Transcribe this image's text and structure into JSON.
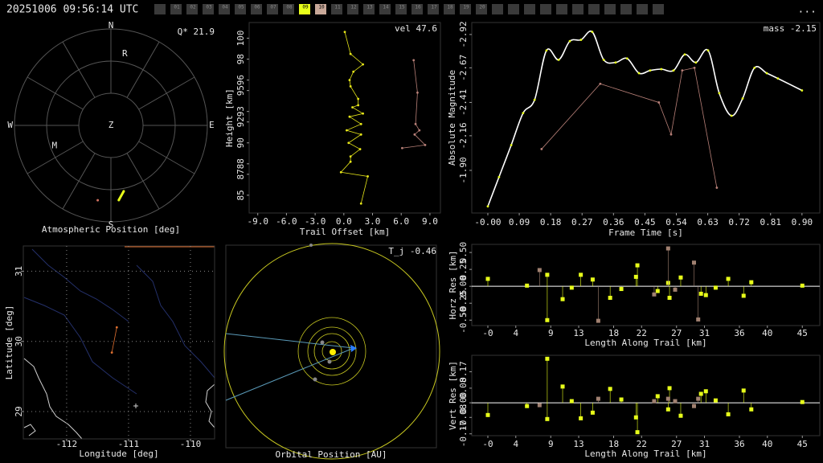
{
  "header": {
    "timestamp": "20251006 09:56:14 UTC",
    "menu": "...",
    "tab_color": "#3a3a3a",
    "tabs": [
      {
        "label": "01"
      },
      {
        "label": "02"
      },
      {
        "label": "03"
      },
      {
        "label": "04"
      },
      {
        "label": "05"
      },
      {
        "label": "06"
      },
      {
        "label": "07"
      },
      {
        "label": "08"
      },
      {
        "label": "09",
        "color": "#e8ff1a"
      },
      {
        "label": "10",
        "color": "#c8a898"
      },
      {
        "label": "11"
      },
      {
        "label": "12"
      },
      {
        "label": "13"
      },
      {
        "label": "14"
      },
      {
        "label": "15"
      },
      {
        "label": "16"
      },
      {
        "label": "17"
      },
      {
        "label": "18"
      },
      {
        "label": "19"
      },
      {
        "label": "20"
      }
    ]
  },
  "chart_data": [
    {
      "type": "polar",
      "title": "Atmospheric Position [deg]",
      "annotation": "Q* 21.9",
      "directions": {
        "north": "N",
        "east": "E",
        "south": "S",
        "west": "W",
        "zenith": "Z"
      },
      "rlim": [
        0,
        90
      ],
      "stations": [
        {
          "label": "R",
          "azimuth": 11,
          "zenith": 68
        },
        {
          "label": "M",
          "azimuth": 250,
          "zenith": 56
        }
      ],
      "series": [
        {
          "color": "#e8ff1a",
          "azimuth": [
            174,
            169
          ],
          "values": [
            70.1,
            62.6
          ]
        },
        {
          "color": "#d07060",
          "azimuth": [
            190
          ],
          "values": [
            70.9
          ]
        }
      ]
    },
    {
      "type": "line",
      "xlabel": "Trail Offset [km]",
      "ylabel": "Height [km]",
      "annotation": "vel 47.6",
      "xlim": [
        -9.9,
        10.1
      ],
      "ylim": [
        83.3,
        101.5
      ],
      "xticks": [
        {
          "value": -9,
          "label": "-9.0"
        },
        {
          "value": -6,
          "label": "-6.0"
        },
        {
          "value": -3,
          "label": "-3.0"
        },
        {
          "value": 0,
          "label": "0.0"
        },
        {
          "value": 3,
          "label": "3.0"
        },
        {
          "value": 6,
          "label": "6.0"
        },
        {
          "value": 9,
          "label": "9.0"
        }
      ],
      "yticks": [
        85,
        87,
        88,
        90,
        92,
        93,
        95,
        96,
        98,
        100
      ],
      "series": [
        {
          "color": "#e6e619",
          "x": [
            0.1,
            0.7,
            2.0,
            1.0,
            0.6,
            0.7,
            1.5,
            1.5,
            0.9,
            2.0,
            0.6,
            1.8,
            0.3,
            1.8,
            0.5,
            1.7,
            0.7,
            0.7,
            -0.3,
            2.5,
            1.8
          ],
          "values": [
            100.6,
            98.5,
            97.5,
            96.8,
            96.0,
            95.4,
            94.2,
            93.6,
            93.4,
            92.8,
            92.5,
            91.8,
            91.2,
            90.8,
            90.0,
            89.4,
            88.7,
            88.2,
            87.2,
            86.8,
            84.2
          ]
        },
        {
          "color": "#b88078",
          "x": [
            7.3,
            7.7,
            7.5,
            7.9,
            7.4,
            8.5,
            6.1
          ],
          "values": [
            97.9,
            94.8,
            91.8,
            91.2,
            90.8,
            89.8,
            89.5
          ]
        }
      ]
    },
    {
      "type": "line",
      "xlabel": "Frame Time [s]",
      "ylabel": "Absolute Magnitude",
      "annotation": "mass -2.15",
      "xlim": [
        -0.046,
        0.951
      ],
      "ylim": [
        -1.58,
        -3.01
      ],
      "xticks": [
        {
          "value": 0,
          "label": "-0.00"
        },
        0.09,
        0.18,
        0.27,
        0.36,
        0.45,
        0.54,
        0.63,
        0.72,
        0.81,
        {
          "value": 0.9,
          "label": "0.90"
        }
      ],
      "yticks": [
        -2.92,
        -2.67,
        -2.41,
        -2.16,
        {
          "value": -1.9,
          "label": "-1.90"
        }
      ],
      "series": [
        {
          "color": "#e8ff1a",
          "line_color": "#ffffff",
          "smooth": true,
          "x": [
            0,
            0.032,
            0.067,
            0.101,
            0.134,
            0.168,
            0.203,
            0.235,
            0.267,
            0.299,
            0.332,
            0.366,
            0.399,
            0.433,
            0.465,
            0.497,
            0.532,
            0.564,
            0.596,
            0.631,
            0.663,
            0.698,
            0.73,
            0.764,
            0.799,
            0.831,
            0.9
          ],
          "values": [
            -1.63,
            -1.85,
            -2.09,
            -2.33,
            -2.43,
            -2.8,
            -2.73,
            -2.87,
            -2.88,
            -2.94,
            -2.73,
            -2.71,
            -2.74,
            -2.63,
            -2.65,
            -2.66,
            -2.65,
            -2.77,
            -2.71,
            -2.8,
            -2.48,
            -2.31,
            -2.44,
            -2.67,
            -2.63,
            -2.59,
            -2.5
          ]
        },
        {
          "color": "#b88078",
          "x": [
            0.154,
            0.322,
            0.49,
            0.525,
            0.557,
            0.592,
            0.656
          ],
          "values": [
            -2.06,
            -2.55,
            -2.41,
            -2.17,
            -2.65,
            -2.67,
            -1.77
          ]
        }
      ]
    },
    {
      "type": "line",
      "xlabel": "Longitude [deg]",
      "ylabel": "Latitude [deg]",
      "grid": true,
      "xlim": [
        -112.7,
        -109.61
      ],
      "ylim": [
        28.61,
        31.36
      ],
      "xticks": [
        -112,
        -111,
        -110
      ],
      "yticks": [
        29,
        30,
        31
      ],
      "series": [
        {
          "color": "#e07030",
          "x": [
            -111.19,
            -111.27
          ],
          "values": [
            30.2,
            29.84
          ]
        }
      ]
    },
    {
      "type": "orbit",
      "title": "Orbital Position [AU]",
      "annotation": "T_j -0.46"
    },
    {
      "type": "stem",
      "xlabel": "Length Along Trail [km]",
      "ylabel": "Horz Res [km]",
      "xlim": [
        -2.3,
        47.5
      ],
      "ylim": [
        -0.58,
        0.62
      ],
      "xticks": [
        {
          "value": 0,
          "label": "-0"
        },
        4,
        9,
        13,
        18,
        22,
        27,
        31,
        36,
        40,
        45
      ],
      "yticks": [
        {
          "value": -0.5,
          "label": "-0.50"
        },
        -0.25,
        {
          "value": 0,
          "label": "0.00"
        },
        0.25,
        {
          "value": 0.5,
          "label": "0.50"
        }
      ],
      "series": [
        {
          "color": "#e8ff1a",
          "x": [
            0,
            5.6,
            8.5,
            8.5,
            10.7,
            12,
            13.3,
            15,
            17.5,
            19.1,
            21.2,
            21.4,
            24.3,
            25.8,
            26,
            27.6,
            30.5,
            31.2,
            32.6,
            34.4,
            36.6,
            37.7,
            45
          ],
          "values": [
            0.11,
            0.01,
            0.17,
            -0.5,
            -0.19,
            -0.02,
            0.17,
            0.1,
            -0.17,
            -0.04,
            0.14,
            0.31,
            -0.07,
            0.05,
            -0.17,
            0.13,
            -0.11,
            -0.13,
            -0.02,
            0.11,
            -0.14,
            0.06,
            0.01
          ]
        },
        {
          "color": "#a08070",
          "x": [
            7.4,
            15.8,
            23.8,
            25.8,
            26.8,
            29.5,
            30.1
          ],
          "values": [
            0.24,
            -0.51,
            -0.12,
            0.56,
            -0.05,
            0.35,
            -0.49
          ]
        }
      ]
    },
    {
      "type": "stem",
      "xlabel": "Length Along Trail [km]",
      "ylabel": "Vert Res [km]",
      "xlim": [
        -2.3,
        47.5
      ],
      "ylim": [
        -0.18,
        0.26
      ],
      "xticks": [
        {
          "value": 0,
          "label": "-0"
        },
        4,
        9,
        13,
        18,
        22,
        27,
        31,
        36,
        40,
        45
      ],
      "yticks": [
        -0.17,
        -0.08,
        {
          "value": 0,
          "label": "0.00"
        },
        0.08,
        0.17
      ],
      "series": [
        {
          "color": "#e8ff1a",
          "x": [
            0,
            5.6,
            8.5,
            8.5,
            10.7,
            12,
            13.3,
            15,
            17.5,
            19.1,
            21.2,
            21.4,
            24.3,
            25.8,
            26,
            27.6,
            30.5,
            31.2,
            32.6,
            34.4,
            36.6,
            37.7,
            45
          ],
          "values": [
            -0.067,
            -0.018,
            0.241,
            -0.089,
            0.089,
            0.009,
            -0.085,
            -0.054,
            0.076,
            0.018,
            -0.08,
            -0.161,
            0.036,
            -0.036,
            0.08,
            -0.071,
            0.049,
            0.063,
            0.013,
            -0.063,
            0.067,
            -0.036,
            0.004
          ]
        },
        {
          "color": "#a08070",
          "x": [
            7.4,
            15.8,
            23.8,
            25.8,
            26.8,
            29.5,
            30.1
          ],
          "values": [
            -0.013,
            0.022,
            0.009,
            0.022,
            0.009,
            -0.018,
            0.022
          ]
        }
      ]
    }
  ]
}
